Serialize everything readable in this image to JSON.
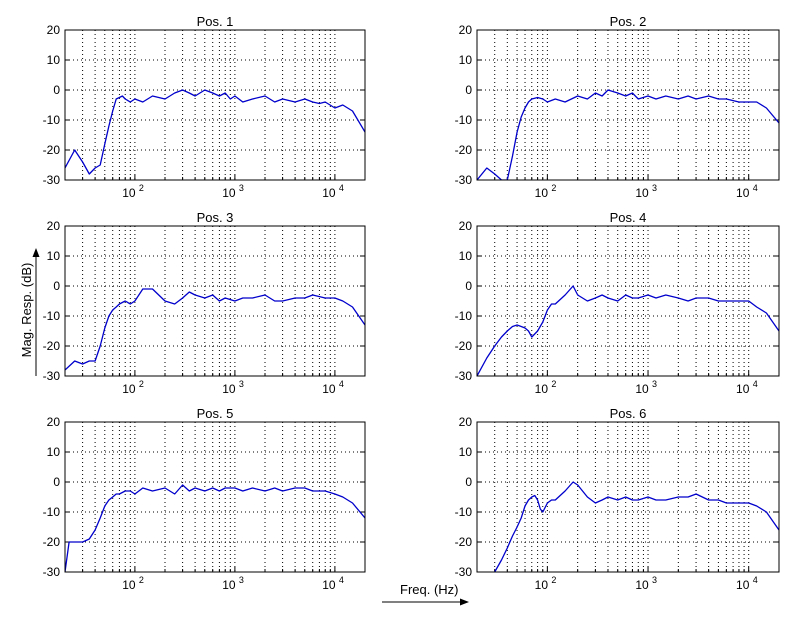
{
  "chart_data": {
    "type": "line",
    "layout": "3x2 small multiples",
    "xscale": "log",
    "xlim": [
      20,
      20000
    ],
    "ylim": [
      -30,
      20
    ],
    "y_ticks": [
      20,
      10,
      0,
      -10,
      -20,
      -30
    ],
    "x_ticks": [
      {
        "value": 100,
        "label": "10",
        "exp": "2"
      },
      {
        "value": 1000,
        "label": "10",
        "exp": "3"
      },
      {
        "value": 10000,
        "label": "10",
        "exp": "4"
      }
    ],
    "grid": true,
    "line_color": "#0000cc",
    "ylabel": "Mag. Resp. (dB)",
    "xlabel": "Freq. (Hz)",
    "panels": [
      {
        "title": "Pos. 1",
        "x": [
          20,
          25,
          30,
          35,
          40,
          45,
          50,
          55,
          60,
          65,
          70,
          75,
          80,
          90,
          100,
          120,
          150,
          200,
          250,
          300,
          350,
          400,
          500,
          600,
          700,
          800,
          900,
          1000,
          1200,
          1500,
          2000,
          2500,
          3000,
          4000,
          5000,
          6000,
          7000,
          8000,
          10000,
          12000,
          15000,
          20000
        ],
        "y": [
          -26,
          -20,
          -24,
          -28,
          -26,
          -25,
          -18,
          -12,
          -7,
          -3,
          -2.5,
          -2,
          -3,
          -4,
          -3,
          -4,
          -2,
          -3,
          -1,
          0,
          -1,
          -2,
          0,
          -1,
          -2,
          -1,
          -3,
          -2,
          -4,
          -3,
          -2,
          -4,
          -3,
          -4,
          -3,
          -4,
          -4.5,
          -4,
          -6,
          -5,
          -7,
          -14
        ]
      },
      {
        "title": "Pos. 2",
        "x": [
          20,
          25,
          30,
          35,
          40,
          45,
          50,
          55,
          60,
          65,
          70,
          80,
          90,
          100,
          120,
          150,
          200,
          250,
          300,
          350,
          400,
          500,
          600,
          700,
          800,
          1000,
          1200,
          1500,
          2000,
          2500,
          3000,
          4000,
          5000,
          6000,
          8000,
          10000,
          12000,
          15000,
          20000
        ],
        "y": [
          -30,
          -26,
          -28,
          -30,
          -30,
          -22,
          -14,
          -9,
          -6,
          -4,
          -3,
          -2.5,
          -3,
          -4,
          -3,
          -4,
          -2,
          -3,
          -1,
          -2,
          0,
          -1,
          -2,
          -1,
          -3,
          -2,
          -3,
          -2,
          -3,
          -2,
          -3,
          -2,
          -3,
          -3,
          -4,
          -4,
          -4,
          -6,
          -11
        ]
      },
      {
        "title": "Pos. 3",
        "x": [
          20,
          25,
          30,
          35,
          40,
          45,
          50,
          55,
          60,
          65,
          70,
          80,
          90,
          100,
          120,
          150,
          200,
          250,
          300,
          350,
          400,
          500,
          600,
          700,
          800,
          1000,
          1200,
          1500,
          2000,
          2500,
          3000,
          4000,
          5000,
          6000,
          8000,
          10000,
          12000,
          15000,
          20000
        ],
        "y": [
          -28,
          -25,
          -26,
          -25,
          -25,
          -20,
          -14,
          -10,
          -8,
          -7,
          -6,
          -5,
          -6,
          -5,
          -1,
          -1,
          -5,
          -6,
          -4,
          -2,
          -3,
          -4,
          -3,
          -5,
          -4,
          -5,
          -4,
          -4,
          -3,
          -5,
          -5,
          -4,
          -4,
          -3,
          -4,
          -4,
          -5,
          -7,
          -13
        ]
      },
      {
        "title": "Pos. 4",
        "x": [
          20,
          25,
          30,
          35,
          40,
          45,
          50,
          55,
          60,
          65,
          70,
          80,
          90,
          100,
          110,
          120,
          150,
          180,
          200,
          250,
          300,
          350,
          400,
          500,
          600,
          700,
          800,
          1000,
          1200,
          1500,
          2000,
          2500,
          3000,
          4000,
          5000,
          6000,
          8000,
          10000,
          12000,
          15000,
          20000
        ],
        "y": [
          -30,
          -24,
          -20,
          -17,
          -15,
          -13.5,
          -13,
          -13.5,
          -14,
          -15,
          -17,
          -15,
          -12,
          -8,
          -6,
          -6,
          -3,
          0,
          -3,
          -5,
          -4,
          -3,
          -4,
          -5,
          -3,
          -4,
          -4,
          -3,
          -4,
          -3,
          -4,
          -5,
          -4,
          -4,
          -5,
          -5,
          -5,
          -5,
          -7,
          -9,
          -15
        ]
      },
      {
        "title": "Pos. 5",
        "x": [
          20,
          22,
          25,
          30,
          35,
          40,
          45,
          50,
          55,
          60,
          65,
          70,
          80,
          90,
          100,
          120,
          150,
          200,
          250,
          300,
          350,
          400,
          500,
          600,
          700,
          800,
          1000,
          1200,
          1500,
          2000,
          2500,
          3000,
          4000,
          5000,
          6000,
          8000,
          10000,
          12000,
          15000,
          20000
        ],
        "y": [
          -30,
          -20,
          -20,
          -20,
          -19,
          -16,
          -12,
          -8,
          -6,
          -5,
          -4,
          -4,
          -3,
          -3,
          -4,
          -2,
          -3,
          -2,
          -4,
          -1,
          -3,
          -2,
          -3,
          -2,
          -3,
          -2,
          -2,
          -3,
          -2,
          -3,
          -2,
          -3,
          -2,
          -2,
          -3,
          -3,
          -4,
          -5,
          -7,
          -12
        ]
      },
      {
        "title": "Pos. 6",
        "x": [
          30,
          35,
          40,
          45,
          50,
          55,
          60,
          65,
          70,
          75,
          80,
          85,
          90,
          100,
          110,
          120,
          150,
          180,
          200,
          250,
          300,
          350,
          400,
          500,
          600,
          700,
          800,
          1000,
          1200,
          1500,
          2000,
          2500,
          3000,
          4000,
          5000,
          6000,
          8000,
          10000,
          12000,
          15000,
          20000
        ],
        "y": [
          -30,
          -26,
          -22,
          -18,
          -15,
          -12,
          -8,
          -6,
          -5,
          -4.5,
          -6,
          -9,
          -10,
          -7,
          -6,
          -6,
          -3,
          0,
          -1,
          -5,
          -7,
          -6,
          -5,
          -6,
          -5,
          -6,
          -6,
          -5,
          -6,
          -6,
          -5,
          -5,
          -4,
          -6,
          -6,
          -7,
          -7,
          -7,
          -8,
          -10,
          -16
        ]
      }
    ]
  }
}
